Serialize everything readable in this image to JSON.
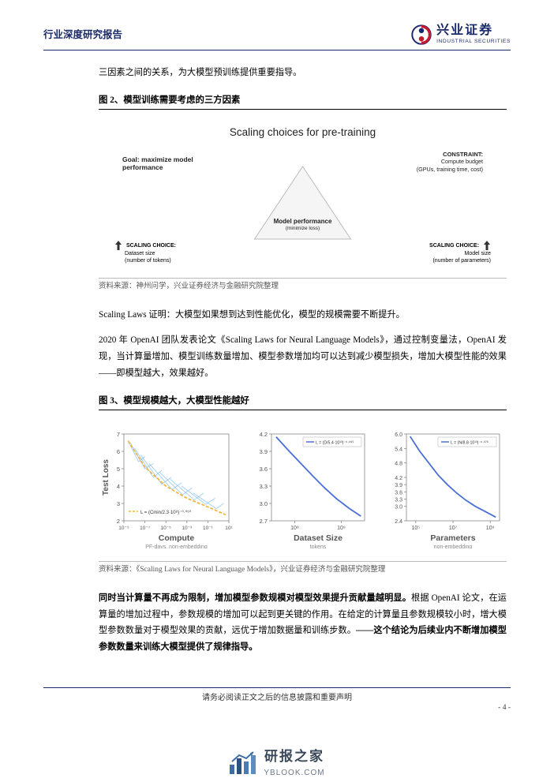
{
  "header": {
    "title": "行业深度研究报告",
    "logo_cn": "兴业证券",
    "logo_en": "INDUSTRIAL SECURITIES"
  },
  "intro_line": "三因素之间的关系，为大模型预训练提供重要指导。",
  "fig2": {
    "title": "图 2、模型训练需要考虑的三方因素",
    "header": "Scaling choices for pre-training",
    "goal_label": "Goal: maximize model performance",
    "constraint_label": "CONSTRAINT:",
    "constraint_text1": "Compute budget",
    "constraint_text2": "(GPUs, training time, cost)",
    "triangle_center_label": "Model performance",
    "triangle_center_sub": "(minimize loss)",
    "left_choice_label": "SCALING CHOICE:",
    "left_choice_text1": "Dataset size",
    "left_choice_text2": "(number of tokens)",
    "right_choice_label": "SCALING CHOICE:",
    "right_choice_text1": "Model size",
    "right_choice_text2": "(number of parameters)",
    "triangle_fill": "#f5f5f5",
    "triangle_stroke": "#bbbbbb",
    "source": "资料来源：神州问学，兴业证券经济与金融研究院整理"
  },
  "para2": "Scaling Laws 证明：大模型如果想到达到性能优化，模型的规模需要不断提升。",
  "para3": "2020 年 OpenAI 团队发表论文《Scaling Laws for Neural Language Models》，通过控制变量法，OpenAI 发现，当计算量增加、模型训练数量增加、模型参数增加均可以达到减少模型损失，增加大模型性能的效果——即模型越大，效果越好。",
  "fig3": {
    "title": "图 3、模型规模越大，大模型性能越好",
    "source": "资料来源：《Scaling Laws for Neural Language Models》，兴业证券经济与金融研究院整理",
    "chart_a": {
      "ylabel": "Test Loss",
      "xlabel": "Compute",
      "xsub": "PF-days, non-embedding",
      "xticks": [
        "10⁻⁹",
        "10⁻⁷",
        "10⁻⁵",
        "10⁻³",
        "10⁻¹",
        "10¹"
      ],
      "yticks_vals": [
        2,
        3,
        4,
        5,
        6,
        7
      ],
      "equation": "L = (Cmin/2.3·10⁸)⁻⁰·⁰⁵⁰",
      "main_line_color": "#f4b63f",
      "fan_color": "#6eb4e8",
      "y_range": [
        2,
        7
      ],
      "main_line": [
        {
          "x": 0.04,
          "y": 6.6
        },
        {
          "x": 0.2,
          "y": 5.1
        },
        {
          "x": 0.4,
          "y": 4.0
        },
        {
          "x": 0.6,
          "y": 3.3
        },
        {
          "x": 0.8,
          "y": 2.8
        },
        {
          "x": 0.97,
          "y": 2.35
        }
      ],
      "fan_lines": [
        [
          {
            "x": 0.04,
            "y": 6.6
          },
          {
            "x": 0.14,
            "y": 5.4
          },
          {
            "x": 0.2,
            "y": 5.7
          }
        ],
        [
          {
            "x": 0.06,
            "y": 6.5
          },
          {
            "x": 0.2,
            "y": 5.0
          },
          {
            "x": 0.28,
            "y": 5.3
          }
        ],
        [
          {
            "x": 0.1,
            "y": 6.2
          },
          {
            "x": 0.28,
            "y": 4.5
          },
          {
            "x": 0.36,
            "y": 4.9
          }
        ],
        [
          {
            "x": 0.16,
            "y": 5.8
          },
          {
            "x": 0.36,
            "y": 4.1
          },
          {
            "x": 0.45,
            "y": 4.5
          }
        ],
        [
          {
            "x": 0.24,
            "y": 5.3
          },
          {
            "x": 0.46,
            "y": 3.8
          },
          {
            "x": 0.55,
            "y": 4.2
          }
        ],
        [
          {
            "x": 0.34,
            "y": 4.8
          },
          {
            "x": 0.56,
            "y": 3.5
          },
          {
            "x": 0.65,
            "y": 3.9
          }
        ],
        [
          {
            "x": 0.44,
            "y": 4.4
          },
          {
            "x": 0.67,
            "y": 3.2
          },
          {
            "x": 0.76,
            "y": 3.6
          }
        ],
        [
          {
            "x": 0.55,
            "y": 4.0
          },
          {
            "x": 0.78,
            "y": 2.95
          },
          {
            "x": 0.87,
            "y": 3.3
          }
        ],
        [
          {
            "x": 0.66,
            "y": 3.6
          },
          {
            "x": 0.88,
            "y": 2.7
          },
          {
            "x": 0.95,
            "y": 3.0
          }
        ]
      ]
    },
    "chart_b": {
      "xlabel": "Dataset Size",
      "xsub": "tokens",
      "xticks": [
        "10⁸",
        "10⁹"
      ],
      "yticks_vals": [
        2.7,
        3.0,
        3.3,
        3.6,
        3.9,
        4.2
      ],
      "equation": "L = (D/5.4·10¹³)⁻⁰·⁰⁹⁵",
      "line_color": "#4a6fd6",
      "y_range": [
        2.7,
        4.2
      ],
      "points": [
        {
          "x": 0.05,
          "y": 4.15
        },
        {
          "x": 0.18,
          "y": 3.92
        },
        {
          "x": 0.31,
          "y": 3.7
        },
        {
          "x": 0.44,
          "y": 3.48
        },
        {
          "x": 0.57,
          "y": 3.27
        },
        {
          "x": 0.7,
          "y": 3.08
        },
        {
          "x": 0.83,
          "y": 2.92
        },
        {
          "x": 0.96,
          "y": 2.78
        }
      ]
    },
    "chart_c": {
      "xlabel": "Parameters",
      "xsub": "non-embedding",
      "xticks": [
        "10⁵",
        "10⁷",
        "10⁹"
      ],
      "yticks_vals": [
        2.4,
        3.0,
        3.3,
        3.6,
        3.9,
        4.2,
        4.8,
        5.4,
        6.0
      ],
      "equation": "L = (N/8.8·10¹³)⁻⁰·⁰⁷⁶",
      "line_color": "#4a6fd6",
      "y_range": [
        2.4,
        6.0
      ],
      "points": [
        {
          "x": 0.04,
          "y": 5.9
        },
        {
          "x": 0.14,
          "y": 5.3
        },
        {
          "x": 0.24,
          "y": 4.8
        },
        {
          "x": 0.34,
          "y": 4.3
        },
        {
          "x": 0.44,
          "y": 3.9
        },
        {
          "x": 0.54,
          "y": 3.55
        },
        {
          "x": 0.64,
          "y": 3.25
        },
        {
          "x": 0.74,
          "y": 3.0
        },
        {
          "x": 0.84,
          "y": 2.8
        },
        {
          "x": 0.96,
          "y": 2.55
        }
      ]
    }
  },
  "para4_bold1": "同时当计算量不再成为限制，增加模型参数规模对模型效果提升贡献量越明显。",
  "para4_body": "根据 OpenAI 论文，在运算量的增加过程中，参数规模的增加可以起到更关键的作用。在给定的计算量且参数规模较小时，增大模型参数数量对于模型效果的贡献，远优于增加数据量和训练步数。",
  "para4_bold2": "——这个结论为后续业内不断增加模型参数数量来训练大模型提供了规律指导。",
  "footer": {
    "note": "请务必阅读正文之后的信息披露和重要声明",
    "page": "- 4 -"
  },
  "watermark": {
    "name": "研报之家",
    "url": "YBLOOK.COM",
    "bar_colors": [
      "#3b6ea5",
      "#2c5380",
      "#4a7bb3",
      "#5c8cc0"
    ]
  }
}
